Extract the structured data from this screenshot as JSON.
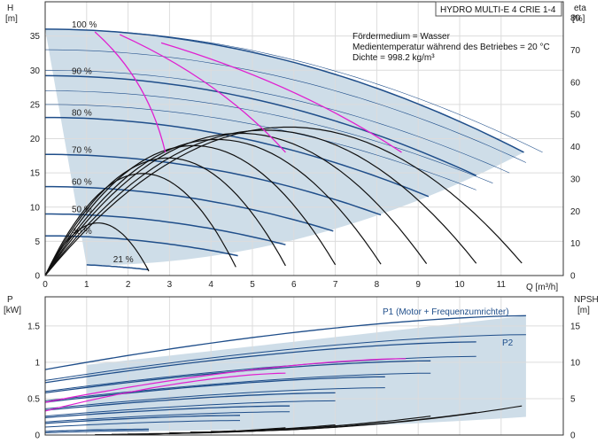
{
  "chart_data": [
    {
      "type": "line",
      "title": "HYDRO MULTI-E 4 CRIE 1-4",
      "notes": [
        "Fördermedium = Wasser",
        "Medientemperatur während des Betriebes = 20 °C",
        "Dichte = 998.2 kg/m³"
      ],
      "x_axis_label": "Q [m³/h]",
      "y_left_label": [
        "H",
        "[m]"
      ],
      "y_right_label": [
        "eta",
        "[%]"
      ],
      "xlim": [
        0,
        12.5
      ],
      "ylim": [
        0,
        40
      ],
      "y2lim": [
        0,
        85
      ],
      "x_ticks": [
        0,
        1,
        2,
        3,
        4,
        5,
        6,
        7,
        8,
        9,
        10,
        11
      ],
      "y_ticks": [
        0,
        5,
        10,
        15,
        20,
        25,
        30,
        35
      ],
      "y2_ticks": [
        0,
        10,
        20,
        30,
        40,
        50,
        60,
        70,
        80
      ],
      "colors": {
        "head": "#1f4e8a",
        "eta": "#111111",
        "iso": "#e020d0",
        "thin": "#1f4e8a",
        "area": "#c9d9e6",
        "grid": "#dcdcdc"
      },
      "speed_curves": [
        {
          "label": "100 %",
          "h0": 36,
          "qmax": 11.55,
          "qstart": 0
        },
        {
          "label": "90 %",
          "h0": 29.2,
          "qmax": 10.4,
          "qstart": 0
        },
        {
          "label": "80 %",
          "h0": 23.1,
          "qmax": 9.25,
          "qstart": 0
        },
        {
          "label": "70 %",
          "h0": 17.7,
          "qmax": 8.1,
          "qstart": 0
        },
        {
          "label": "60 %",
          "h0": 13.0,
          "qmax": 6.95,
          "qstart": 0
        },
        {
          "label": "50 %",
          "h0": 9.0,
          "qmax": 5.8,
          "qstart": 0
        },
        {
          "label": "40 %",
          "h0": 5.8,
          "qmax": 4.65,
          "qstart": 0
        },
        {
          "label": "21 %",
          "h0": 1.7,
          "qmax": 2.5,
          "qstart": 1.0
        }
      ],
      "eta_curves": [
        {
          "qmax": 11.5,
          "peak": 48
        },
        {
          "qmax": 10.4,
          "peak": 47
        },
        {
          "qmax": 9.2,
          "peak": 46
        },
        {
          "qmax": 8.1,
          "peak": 44
        },
        {
          "qmax": 7.0,
          "peak": 42
        },
        {
          "qmax": 5.8,
          "peak": 38
        },
        {
          "qmax": 4.6,
          "peak": 33
        },
        {
          "qmax": 2.5,
          "peak": 17
        }
      ],
      "iso_eta_lines": [
        {
          "points": [
            [
              1.2,
              35.6
            ],
            [
              2.9,
              18.0
            ]
          ]
        },
        {
          "points": [
            [
              1.8,
              35.2
            ],
            [
              5.8,
              18.0
            ]
          ]
        },
        {
          "points": [
            [
              2.8,
              34.0
            ],
            [
              8.6,
              18.0
            ]
          ]
        }
      ],
      "thin_curves": [
        {
          "h0": 36,
          "qmax": 12.0
        },
        {
          "h0": 33,
          "qmax": 11.6
        },
        {
          "h0": 30,
          "qmax": 11.2
        },
        {
          "h0": 27,
          "qmax": 10.8
        },
        {
          "h0": 25,
          "qmax": 10.4
        }
      ]
    },
    {
      "type": "line",
      "x_axis_label": "",
      "y_left_label": [
        "P",
        "[kW]"
      ],
      "y_right_label": [
        "NPSH",
        "[m]"
      ],
      "xlim": [
        0,
        12.5
      ],
      "ylim": [
        0,
        1.9
      ],
      "y2lim": [
        0,
        19
      ],
      "y_ticks": [
        0,
        0.5,
        1.0,
        1.5
      ],
      "y2_ticks": [
        0,
        5,
        10,
        15
      ],
      "legend_p1": "P1 (Motor + Frequenzumrichter)",
      "legend_p2": "P2",
      "p1_curves": [
        {
          "p0": 0.9,
          "p1": 1.64,
          "qmax": 11.6
        },
        {
          "p0": 0.72,
          "p1": 1.28,
          "qmax": 10.4
        },
        {
          "p0": 0.58,
          "p1": 1.02,
          "qmax": 9.3
        },
        {
          "p0": 0.45,
          "p1": 0.8,
          "qmax": 8.2
        },
        {
          "p0": 0.34,
          "p1": 0.58,
          "qmax": 7.0
        },
        {
          "p0": 0.24,
          "p1": 0.4,
          "qmax": 5.9
        },
        {
          "p0": 0.16,
          "p1": 0.27,
          "qmax": 4.7
        },
        {
          "p0": 0.05,
          "p1": 0.08,
          "qmax": 2.5
        }
      ],
      "p2_curves": [
        {
          "p0": 0.75,
          "p1": 1.38,
          "qmax": 11.6
        },
        {
          "p0": 0.6,
          "p1": 1.08,
          "qmax": 10.4
        },
        {
          "p0": 0.47,
          "p1": 0.85,
          "qmax": 9.3
        },
        {
          "p0": 0.36,
          "p1": 0.65,
          "qmax": 8.2
        },
        {
          "p0": 0.26,
          "p1": 0.47,
          "qmax": 7.0
        },
        {
          "p0": 0.18,
          "p1": 0.32,
          "qmax": 5.9
        },
        {
          "p0": 0.11,
          "p1": 0.2,
          "qmax": 4.7
        },
        {
          "p0": 0.03,
          "p1": 0.06,
          "qmax": 2.5
        }
      ],
      "iso_p_curves": [
        {
          "p0": 0.45,
          "p1": 1.05,
          "qmax": 8.7
        },
        {
          "p0": 0.33,
          "p1": 0.85,
          "qmax": 5.8
        }
      ],
      "npsh_curves": [
        {
          "qmin": 4.0,
          "qmax": 11.5,
          "n0": 0.5,
          "n1": 4.0
        },
        {
          "qmin": 3.5,
          "qmax": 10.4,
          "n0": 0.4,
          "n1": 3.1
        },
        {
          "qmin": 3.0,
          "qmax": 9.3,
          "n0": 0.3,
          "n1": 2.6
        },
        {
          "qmin": 2.5,
          "qmax": 8.2,
          "n0": 0.2,
          "n1": 1.9
        },
        {
          "qmin": 2.0,
          "qmax": 7.0,
          "n0": 0.15,
          "n1": 1.4
        },
        {
          "qmin": 1.6,
          "qmax": 5.8,
          "n0": 0.1,
          "n1": 1.0
        },
        {
          "qmin": 1.2,
          "qmax": 4.6,
          "n0": 0.05,
          "n1": 0.6
        }
      ]
    }
  ]
}
